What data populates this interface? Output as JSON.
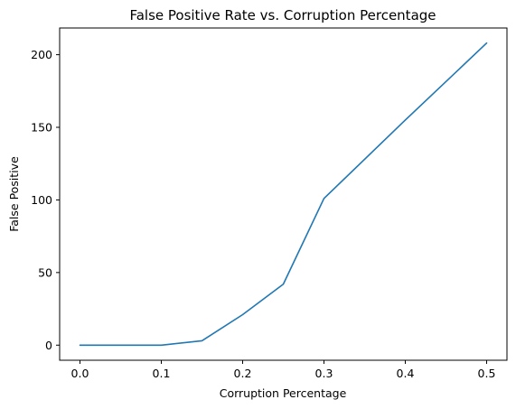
{
  "chart_data": {
    "type": "line",
    "title": "False Positive Rate vs. Corruption Percentage",
    "xlabel": "Corruption Percentage",
    "ylabel": "False Positive",
    "xlim": [
      -0.025,
      0.525
    ],
    "ylim": [
      -10.4,
      218.4
    ],
    "xticks": [
      0.0,
      0.1,
      0.2,
      0.3,
      0.4,
      0.5
    ],
    "xtick_labels": [
      "0.0",
      "0.1",
      "0.2",
      "0.3",
      "0.4",
      "0.5"
    ],
    "yticks": [
      0,
      50,
      100,
      150,
      200
    ],
    "ytick_labels": [
      "0",
      "50",
      "100",
      "150",
      "200"
    ],
    "grid": false,
    "series": [
      {
        "color": "#1f77b4",
        "x": [
          0.0,
          0.05,
          0.1,
          0.15,
          0.2,
          0.25,
          0.3,
          0.4,
          0.5
        ],
        "y": [
          0,
          0,
          0,
          3,
          21,
          42,
          101,
          155,
          208
        ]
      }
    ]
  }
}
